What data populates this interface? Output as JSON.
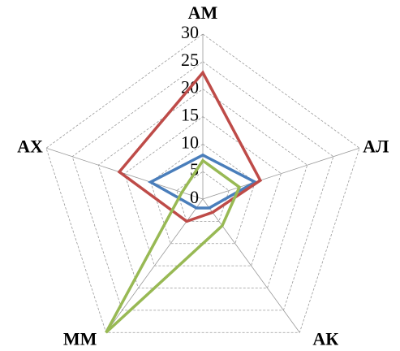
{
  "chart_data": {
    "type": "radar",
    "categories": [
      "АМ",
      "АЛ",
      "АК",
      "ММ",
      "АХ"
    ],
    "series": [
      {
        "color": "#4a7ebb",
        "values": [
          8,
          10,
          2,
          2,
          10
        ]
      },
      {
        "color": "#be4b48",
        "values": [
          23,
          11,
          3,
          5,
          16
        ]
      },
      {
        "color": "#98b954",
        "values": [
          7,
          7,
          6,
          30,
          4
        ]
      }
    ],
    "ylim": [
      0,
      30
    ],
    "yticks": [
      0,
      5,
      10,
      15,
      20,
      25,
      30
    ],
    "grid": true
  }
}
